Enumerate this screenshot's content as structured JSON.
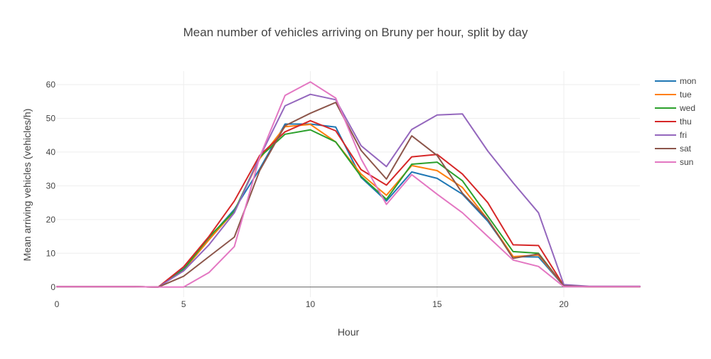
{
  "chart_data": {
    "type": "line",
    "title": "Mean number of vehicles arriving on Bruny per hour, split by day",
    "xlabel": "Hour",
    "ylabel": "Mean arriving vehicles (vehicles/h)",
    "xlim": [
      0,
      23
    ],
    "ylim": [
      -3,
      64
    ],
    "x_ticks": [
      0,
      5,
      10,
      15,
      20
    ],
    "y_ticks": [
      0,
      10,
      20,
      30,
      40,
      50,
      60
    ],
    "grid": true,
    "legend_position": "top-right",
    "x": [
      0,
      1,
      2,
      3,
      4,
      5,
      6,
      7,
      8,
      9,
      10,
      11,
      12,
      13,
      14,
      15,
      16,
      17,
      18,
      19,
      20,
      21,
      22,
      23
    ],
    "series": [
      {
        "name": "mon",
        "color": "#1f77b4",
        "values": [
          0.1,
          0.1,
          0.1,
          0.1,
          0.0,
          5.5,
          14.5,
          23.0,
          35.0,
          48.3,
          48.3,
          47.4,
          32.5,
          25.5,
          34.1,
          32.2,
          27.5,
          19.5,
          9.0,
          8.9,
          0.3,
          0.1,
          0.1,
          0.1
        ]
      },
      {
        "name": "tue",
        "color": "#ff7f0e",
        "values": [
          0.1,
          0.1,
          0.1,
          0.1,
          0.0,
          5.0,
          14.0,
          22.5,
          38.0,
          47.5,
          48.2,
          43.0,
          33.5,
          27.2,
          36.0,
          34.5,
          29.5,
          20.0,
          9.0,
          9.5,
          0.3,
          0.1,
          0.1,
          0.1
        ]
      },
      {
        "name": "wed",
        "color": "#2ca02c",
        "values": [
          0.1,
          0.1,
          0.1,
          0.1,
          0.0,
          5.2,
          14.8,
          22.5,
          38.5,
          45.3,
          46.6,
          43.0,
          32.8,
          26.0,
          36.4,
          37.0,
          31.5,
          21.0,
          10.5,
          10.0,
          0.3,
          0.1,
          0.1,
          0.1
        ]
      },
      {
        "name": "thu",
        "color": "#d62728",
        "values": [
          0.1,
          0.1,
          0.1,
          0.1,
          0.0,
          6.0,
          15.0,
          25.5,
          39.0,
          46.0,
          49.3,
          46.3,
          34.8,
          30.2,
          38.6,
          39.3,
          33.5,
          25.0,
          12.5,
          12.3,
          0.4,
          0.1,
          0.1,
          0.1
        ]
      },
      {
        "name": "fri",
        "color": "#9467bd",
        "values": [
          0.1,
          0.1,
          0.1,
          0.1,
          0.0,
          4.8,
          12.5,
          22.0,
          38.5,
          53.7,
          57.1,
          55.5,
          41.9,
          35.7,
          46.7,
          51.0,
          51.3,
          40.3,
          30.9,
          22.0,
          0.7,
          0.2,
          0.2,
          0.2
        ]
      },
      {
        "name": "sat",
        "color": "#8c564b",
        "values": [
          0.1,
          0.1,
          0.1,
          0.1,
          0.0,
          3.2,
          9.0,
          14.8,
          34.5,
          47.8,
          51.5,
          54.7,
          40.5,
          32.0,
          44.8,
          39.0,
          27.8,
          20.0,
          8.5,
          9.8,
          0.3,
          0.1,
          0.1,
          0.1
        ]
      },
      {
        "name": "sun",
        "color": "#e377c2",
        "values": [
          0.1,
          0.1,
          0.1,
          0.1,
          0.0,
          0.0,
          4.3,
          12.0,
          38.5,
          56.8,
          60.8,
          56.0,
          38.0,
          24.5,
          33.3,
          27.5,
          22.0,
          15.0,
          8.0,
          6.1,
          0.1,
          0.1,
          0.1,
          0.1
        ]
      }
    ]
  }
}
